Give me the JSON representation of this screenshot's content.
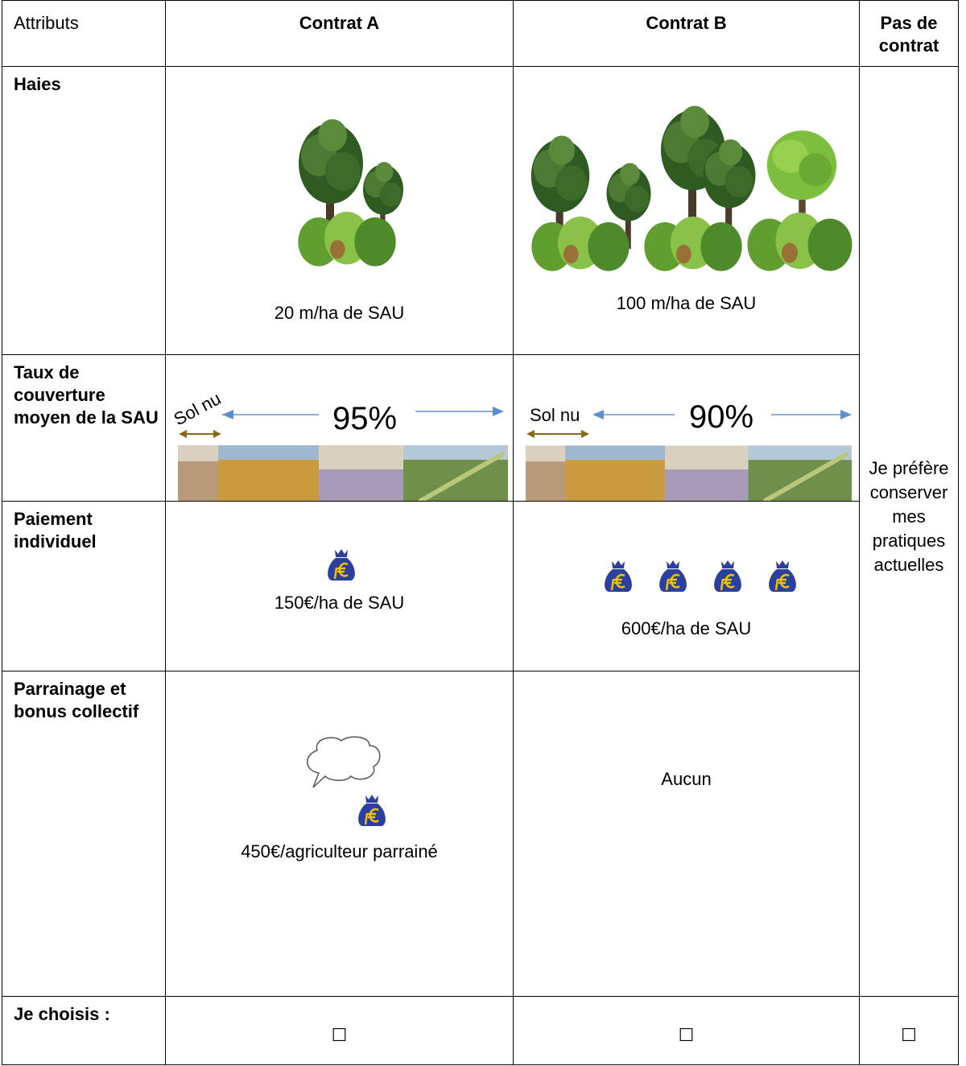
{
  "header": {
    "attribute_label": "Attributs",
    "columns": [
      "Contrat A",
      "Contrat B",
      "Pas de contrat"
    ]
  },
  "rows": [
    {
      "label": "Haies",
      "contrat_a": "20 m/ha de SAU",
      "contrat_b": "100 m/ha de SAU"
    },
    {
      "label": "Taux de couverture moyen de la SAU",
      "contrat_a": {
        "bare_soil": "Sol nu",
        "coverage": "95%"
      },
      "contrat_b": {
        "bare_soil": "Sol nu",
        "coverage": "90%"
      }
    },
    {
      "label": "Paiement individuel",
      "contrat_a": "150€/ha de SAU",
      "contrat_b": "600€/ha de SAU"
    },
    {
      "label": "Parrainage et bonus collectif",
      "contrat_a": "450€/agriculteur parrainé",
      "contrat_b": "Aucun"
    },
    {
      "label": "Je choisis :",
      "choices": [
        "☐",
        "☐",
        "☐"
      ]
    }
  ],
  "no_contract_text": "Je préfère conserver mes pratiques actuelles"
}
